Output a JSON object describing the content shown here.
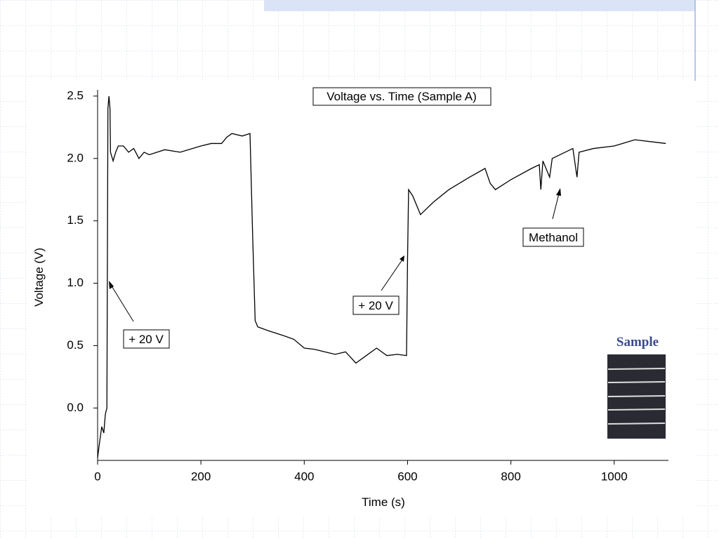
{
  "chart_data": {
    "type": "line",
    "title": "Voltage vs. Time (Sample A)",
    "x_label": "Time (s)",
    "y_label": "Voltage (V)",
    "xlim": [
      0,
      1105
    ],
    "ylim": [
      -0.42,
      2.55
    ],
    "xticks": [
      0,
      200,
      400,
      600,
      800,
      1000
    ],
    "yticks": [
      {
        "value": 0,
        "label": "0.0"
      },
      0.5,
      {
        "value": 1,
        "label": "1.0"
      },
      1.5,
      {
        "value": 2,
        "label": "2.0"
      },
      2.5
    ],
    "color": "#000000",
    "x": [
      0,
      3,
      8,
      12,
      15,
      18,
      20,
      22,
      24,
      25,
      30,
      35,
      40,
      50,
      60,
      70,
      80,
      90,
      100,
      130,
      160,
      200,
      220,
      240,
      250,
      260,
      280,
      295,
      300,
      305,
      310,
      330,
      360,
      380,
      400,
      420,
      440,
      460,
      480,
      500,
      520,
      540,
      560,
      580,
      598,
      600,
      602,
      610,
      620,
      625,
      650,
      680,
      720,
      750,
      760,
      770,
      800,
      840,
      855,
      858,
      862,
      870,
      875,
      880,
      920,
      928,
      932,
      960,
      1000,
      1040,
      1080,
      1100
    ],
    "values": [
      -0.4,
      -0.3,
      -0.15,
      -0.2,
      -0.05,
      0.0,
      2.4,
      2.5,
      2.4,
      2.05,
      1.98,
      2.05,
      2.1,
      2.1,
      2.05,
      2.08,
      2.0,
      2.05,
      2.03,
      2.07,
      2.05,
      2.1,
      2.12,
      2.12,
      2.17,
      2.2,
      2.18,
      2.2,
      1.4,
      0.7,
      0.65,
      0.62,
      0.58,
      0.55,
      0.48,
      0.47,
      0.45,
      0.43,
      0.45,
      0.36,
      0.42,
      0.48,
      0.42,
      0.43,
      0.42,
      1.2,
      1.75,
      1.7,
      1.6,
      1.55,
      1.65,
      1.75,
      1.85,
      1.92,
      1.8,
      1.75,
      1.83,
      1.92,
      1.95,
      1.75,
      1.98,
      1.9,
      1.85,
      2.0,
      2.08,
      1.85,
      2.05,
      2.08,
      2.1,
      2.15,
      2.13,
      2.12
    ],
    "annotations": [
      "+ 20 V",
      "+ 20 V",
      "Methanol"
    ],
    "photo_label": "Sample"
  }
}
